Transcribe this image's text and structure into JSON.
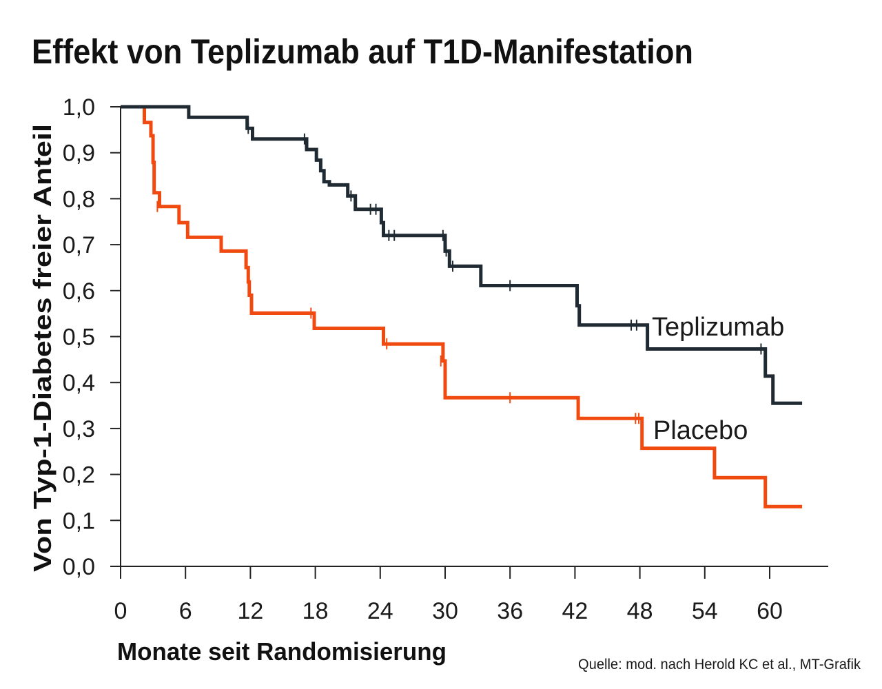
{
  "chart_data": {
    "type": "line",
    "step": true,
    "title": "Effekt von Teplizumab auf T1D-Manifestation",
    "xlabel": "Monate seit Randomisierung",
    "ylabel": "Von Typ-1-Diabetes freier Anteil",
    "xlim": [
      0,
      65
    ],
    "ylim": [
      0,
      1
    ],
    "x_ticks": [
      "0",
      "6",
      "12",
      "18",
      "24",
      "30",
      "36",
      "42",
      "48",
      "54",
      "60"
    ],
    "y_ticks": [
      "0,0",
      "0,1",
      "0,2",
      "0,3",
      "0,4",
      "0,5",
      "0,6",
      "0,7",
      "0,8",
      "0,9",
      "1,0"
    ],
    "grid": false,
    "legend": "inline labels at line ends",
    "source": "Quelle: mod. nach Herold KC et al., MT-Grafik",
    "series": [
      {
        "name": "Teplizumab",
        "color": "#1f2a33",
        "points": [
          [
            0,
            1.0
          ],
          [
            6.3,
            1.0
          ],
          [
            6.3,
            0.977
          ],
          [
            11.7,
            0.977
          ],
          [
            11.7,
            0.953
          ],
          [
            12.2,
            0.953
          ],
          [
            12.2,
            0.93
          ],
          [
            17.2,
            0.93
          ],
          [
            17.2,
            0.907
          ],
          [
            18.1,
            0.907
          ],
          [
            18.1,
            0.884
          ],
          [
            18.5,
            0.884
          ],
          [
            18.5,
            0.861
          ],
          [
            18.8,
            0.861
          ],
          [
            18.8,
            0.837
          ],
          [
            19.3,
            0.837
          ],
          [
            19.3,
            0.83
          ],
          [
            21.0,
            0.83
          ],
          [
            21.0,
            0.806
          ],
          [
            21.7,
            0.806
          ],
          [
            21.7,
            0.777
          ],
          [
            24.1,
            0.777
          ],
          [
            24.1,
            0.748
          ],
          [
            24.3,
            0.748
          ],
          [
            24.3,
            0.72
          ],
          [
            30.0,
            0.72
          ],
          [
            30.0,
            0.686
          ],
          [
            30.4,
            0.686
          ],
          [
            30.4,
            0.653
          ],
          [
            33.3,
            0.653
          ],
          [
            33.3,
            0.611
          ],
          [
            42.2,
            0.611
          ],
          [
            42.2,
            0.567
          ],
          [
            42.4,
            0.567
          ],
          [
            42.4,
            0.525
          ],
          [
            48.7,
            0.525
          ],
          [
            48.7,
            0.473
          ],
          [
            59.6,
            0.473
          ],
          [
            59.6,
            0.414
          ],
          [
            60.3,
            0.414
          ],
          [
            60.3,
            0.355
          ],
          [
            63.0,
            0.355
          ]
        ],
        "censored": [
          [
            11.8,
            0.953
          ],
          [
            17.0,
            0.93
          ],
          [
            21.3,
            0.806
          ],
          [
            23.1,
            0.777
          ],
          [
            23.6,
            0.777
          ],
          [
            24.8,
            0.72
          ],
          [
            25.3,
            0.72
          ],
          [
            29.8,
            0.72
          ],
          [
            30.1,
            0.686
          ],
          [
            30.7,
            0.653
          ],
          [
            36.0,
            0.611
          ],
          [
            47.2,
            0.525
          ],
          [
            47.7,
            0.525
          ],
          [
            59.2,
            0.473
          ]
        ]
      },
      {
        "name": "Placebo",
        "color": "#f04a10",
        "points": [
          [
            0,
            1.0
          ],
          [
            2.2,
            1.0
          ],
          [
            2.2,
            0.966
          ],
          [
            2.8,
            0.966
          ],
          [
            2.8,
            0.937
          ],
          [
            3.0,
            0.937
          ],
          [
            3.0,
            0.879
          ],
          [
            3.1,
            0.879
          ],
          [
            3.1,
            0.813
          ],
          [
            3.6,
            0.813
          ],
          [
            3.6,
            0.783
          ],
          [
            5.4,
            0.783
          ],
          [
            5.4,
            0.748
          ],
          [
            6.2,
            0.748
          ],
          [
            6.2,
            0.716
          ],
          [
            9.3,
            0.716
          ],
          [
            9.3,
            0.686
          ],
          [
            11.6,
            0.686
          ],
          [
            11.6,
            0.65
          ],
          [
            11.8,
            0.65
          ],
          [
            11.8,
            0.619
          ],
          [
            11.9,
            0.619
          ],
          [
            11.9,
            0.59
          ],
          [
            12.1,
            0.59
          ],
          [
            12.1,
            0.551
          ],
          [
            17.9,
            0.551
          ],
          [
            17.9,
            0.518
          ],
          [
            24.3,
            0.518
          ],
          [
            24.3,
            0.484
          ],
          [
            29.8,
            0.484
          ],
          [
            29.8,
            0.447
          ],
          [
            30.0,
            0.447
          ],
          [
            30.0,
            0.367
          ],
          [
            42.3,
            0.367
          ],
          [
            42.3,
            0.322
          ],
          [
            48.2,
            0.322
          ],
          [
            48.2,
            0.257
          ],
          [
            54.9,
            0.257
          ],
          [
            54.9,
            0.193
          ],
          [
            59.6,
            0.193
          ],
          [
            59.6,
            0.13
          ],
          [
            63.0,
            0.13
          ]
        ],
        "censored": [
          [
            3.4,
            0.783
          ],
          [
            17.6,
            0.551
          ],
          [
            24.6,
            0.484
          ],
          [
            29.6,
            0.447
          ],
          [
            36.0,
            0.367
          ],
          [
            47.6,
            0.322
          ],
          [
            47.9,
            0.322
          ]
        ]
      }
    ]
  }
}
